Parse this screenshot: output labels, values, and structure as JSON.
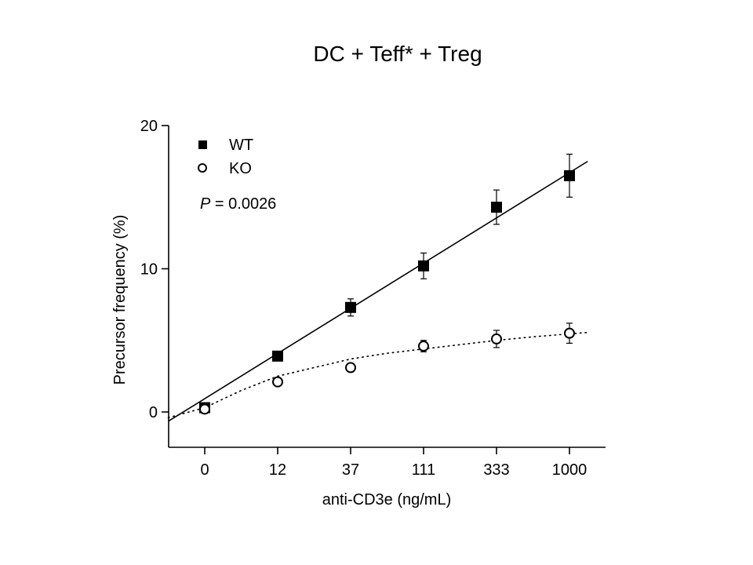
{
  "chart_data": {
    "type": "scatter",
    "title": "DC + Teff* + Treg",
    "xlabel": "anti-CD3e (ng/mL)",
    "ylabel": "Precursor frequency (%)",
    "x_categories": [
      "0",
      "12",
      "37",
      "111",
      "333",
      "1000"
    ],
    "y_ticks": [
      0,
      10,
      20
    ],
    "ylim": [
      -2.4,
      20
    ],
    "grid": false,
    "legend_position": "top-left",
    "series": [
      {
        "name": "WT",
        "marker": "filled-square",
        "color": "#000000",
        "values": [
          0.3,
          3.9,
          7.3,
          10.2,
          14.3,
          16.5
        ],
        "errors": [
          0.2,
          0.2,
          0.6,
          0.9,
          1.2,
          1.5
        ],
        "fit": "solid-linear",
        "fit_line": {
          "x_start": -0.5,
          "y_start": -0.65,
          "x_end": 5.25,
          "y_end": 17.5
        }
      },
      {
        "name": "KO",
        "marker": "open-circle",
        "color": "#000000",
        "values": [
          0.2,
          2.1,
          3.1,
          4.6,
          5.1,
          5.5
        ],
        "errors": [
          0.3,
          0.25,
          0.3,
          0.4,
          0.6,
          0.7
        ],
        "fit": "dotted-curve",
        "fit_points": [
          [
            -0.5,
            -0.4
          ],
          [
            0,
            0.3
          ],
          [
            0.5,
            1.5
          ],
          [
            1,
            2.5
          ],
          [
            1.5,
            3.1
          ],
          [
            2,
            3.7
          ],
          [
            2.5,
            4.1
          ],
          [
            3,
            4.4
          ],
          [
            3.5,
            4.7
          ],
          [
            4,
            5.0
          ],
          [
            4.5,
            5.25
          ],
          [
            5,
            5.45
          ],
          [
            5.25,
            5.55
          ]
        ]
      }
    ],
    "annotation": {
      "italic": "P",
      "rest": " = 0.0026"
    }
  }
}
